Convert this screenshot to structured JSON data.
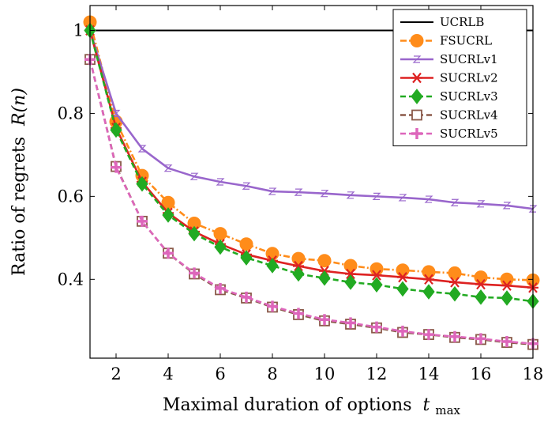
{
  "chart_data": {
    "type": "line",
    "xlabel": "Maximal duration of options",
    "xlabel_symbol": "t",
    "xlabel_subscript": "max",
    "ylabel": "Ratio of regrets",
    "ylabel_symbol": "R(n)",
    "xlim": [
      1,
      18
    ],
    "ylim": [
      0.21,
      1.06
    ],
    "xticks": [
      2,
      4,
      6,
      8,
      10,
      12,
      14,
      16,
      18
    ],
    "yticks": [
      0.4,
      0.6,
      0.8,
      1
    ],
    "legend_position": "top-right",
    "grid": false,
    "x": [
      1,
      2,
      3,
      4,
      5,
      6,
      7,
      8,
      9,
      10,
      11,
      12,
      13,
      14,
      15,
      16,
      17,
      18
    ],
    "series": [
      {
        "name": "UCRLB",
        "color": "#000000",
        "marker": "none",
        "dash": "solid",
        "values": [
          1,
          1,
          1,
          1,
          1,
          1,
          1,
          1,
          1,
          1,
          1,
          1,
          1,
          1,
          1,
          1,
          1,
          1
        ]
      },
      {
        "name": "FSUCRL",
        "color": "#ff8c1a",
        "marker": "circle",
        "dash": "dashdot",
        "values": [
          1.02,
          0.78,
          0.65,
          0.585,
          0.535,
          0.51,
          0.485,
          0.462,
          0.45,
          0.445,
          0.433,
          0.425,
          0.422,
          0.418,
          0.415,
          0.405,
          0.4,
          0.398
        ]
      },
      {
        "name": "SUCRLv1",
        "color": "#9966cc",
        "marker": "z",
        "dash": "solid",
        "values": [
          1.0,
          0.8,
          0.715,
          0.668,
          0.648,
          0.635,
          0.625,
          0.612,
          0.61,
          0.607,
          0.603,
          0.6,
          0.597,
          0.593,
          0.585,
          0.582,
          0.578,
          0.57
        ]
      },
      {
        "name": "SUCRLv2",
        "color": "#dd2222",
        "marker": "asterisk",
        "dash": "solid",
        "values": [
          1.0,
          0.765,
          0.635,
          0.56,
          0.515,
          0.485,
          0.46,
          0.445,
          0.432,
          0.42,
          0.413,
          0.41,
          0.405,
          0.4,
          0.393,
          0.388,
          0.385,
          0.38
        ]
      },
      {
        "name": "SUCRLv3",
        "color": "#22aa22",
        "marker": "diamond",
        "dash": "dashed",
        "values": [
          1.0,
          0.76,
          0.63,
          0.555,
          0.51,
          0.478,
          0.452,
          0.433,
          0.413,
          0.403,
          0.393,
          0.387,
          0.377,
          0.37,
          0.365,
          0.357,
          0.355,
          0.347
        ]
      },
      {
        "name": "SUCRLv4",
        "color": "#8b5a4a",
        "marker": "square",
        "dash": "dashed",
        "values": [
          0.93,
          0.672,
          0.54,
          0.463,
          0.413,
          0.375,
          0.355,
          0.333,
          0.315,
          0.3,
          0.292,
          0.283,
          0.272,
          0.267,
          0.26,
          0.255,
          0.248,
          0.243
        ]
      },
      {
        "name": "SUCRLv5",
        "color": "#dd66bb",
        "marker": "plus",
        "dash": "dashed",
        "values": [
          0.93,
          0.67,
          0.54,
          0.463,
          0.415,
          0.378,
          0.357,
          0.335,
          0.318,
          0.303,
          0.295,
          0.285,
          0.275,
          0.267,
          0.262,
          0.257,
          0.25,
          0.245
        ]
      }
    ]
  }
}
